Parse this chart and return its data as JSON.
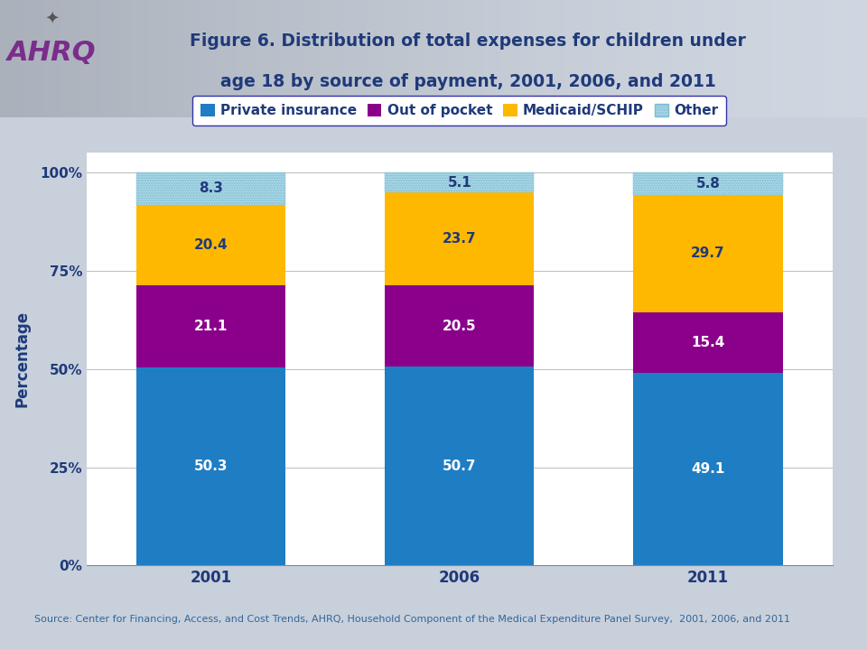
{
  "title_line1": "Figure 6. Distribution of total expenses for children under",
  "title_line2": "age 18 by source of payment, 2001, 2006, and 2011",
  "years": [
    "2001",
    "2006",
    "2011"
  ],
  "private_insurance": [
    50.3,
    50.7,
    49.1
  ],
  "out_of_pocket": [
    21.1,
    20.5,
    15.4
  ],
  "medicaid_schip": [
    20.4,
    23.7,
    29.7
  ],
  "other": [
    8.3,
    5.1,
    5.8
  ],
  "colors": {
    "private_insurance": "#1F7DC4",
    "out_of_pocket": "#8B008B",
    "medicaid_schip": "#FFB800",
    "other_pattern": "#ADD8E6"
  },
  "legend_labels": [
    "Private insurance",
    "Out of pocket",
    "Medicaid/SCHIP",
    "Other"
  ],
  "ylabel": "Percentage",
  "source_text": "Source: Center for Financing, Access, and Cost Trends, AHRQ, Household Component of the Medical Expenditure Panel Survey,  2001, 2006, and 2011",
  "bar_width": 0.6,
  "background_color": "#D8DFE8",
  "plot_bg": "#FFFFFF",
  "title_color": "#1F3A7A",
  "axis_label_color": "#1F3A7A",
  "label_color_white": "#FFFFFF",
  "label_color_dark": "#1F3A7A",
  "yticks": [
    0,
    25,
    50,
    75,
    100
  ],
  "ytick_labels": [
    "0%",
    "25%",
    "50%",
    "75%",
    "100%"
  ]
}
